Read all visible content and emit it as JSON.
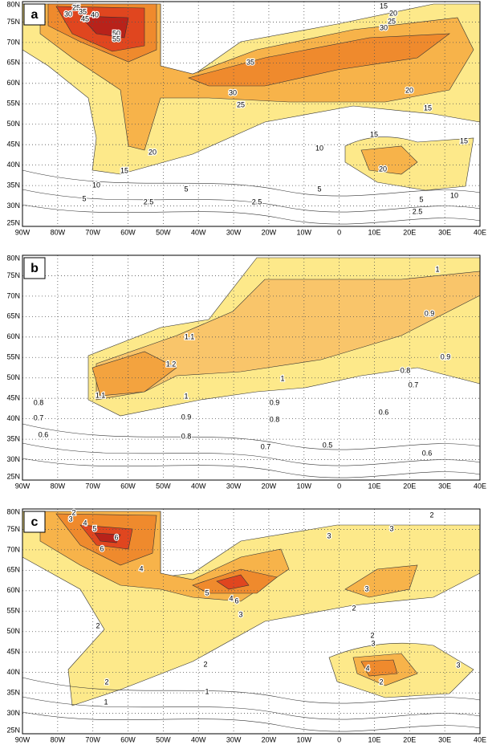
{
  "axes": {
    "lat": [
      "80N",
      "75N",
      "70N",
      "65N",
      "60N",
      "55N",
      "50N",
      "45N",
      "40N",
      "35N",
      "30N",
      "25N"
    ],
    "lon": [
      "90W",
      "80W",
      "70W",
      "60W",
      "50W",
      "40W",
      "30W",
      "20W",
      "10W",
      "0",
      "10E",
      "20E",
      "30E",
      "40E"
    ]
  },
  "panels": [
    {
      "label": "a",
      "contour_labels": [
        "25",
        "30",
        "35",
        "40",
        "45",
        "50",
        "55",
        "15",
        "20",
        "25",
        "30",
        "35",
        "30",
        "25",
        "20",
        "15",
        "20",
        "15",
        "10",
        "5",
        "5",
        "2.5",
        "2.5",
        "10",
        "15",
        "20",
        "15",
        "5",
        "5",
        "10",
        "2.5"
      ]
    },
    {
      "label": "b",
      "contour_labels": [
        "1",
        "0.9",
        "0.9",
        "1.1",
        "1.2",
        "1.1",
        "0.8",
        "1",
        "0.7",
        "0.8",
        "0.7",
        "0.6",
        "1",
        "0.9",
        "0.9",
        "0.8",
        "0.6",
        "0.8",
        "0.7",
        "0.5",
        "0.6"
      ]
    },
    {
      "label": "c",
      "contour_labels": [
        "2",
        "3",
        "4",
        "5",
        "6",
        "6",
        "4",
        "6",
        "5",
        "4",
        "3",
        "3",
        "2",
        "3",
        "3",
        "2",
        "2",
        "2",
        "2",
        "1",
        "1",
        "2",
        "3",
        "4",
        "2",
        "3"
      ]
    }
  ]
}
